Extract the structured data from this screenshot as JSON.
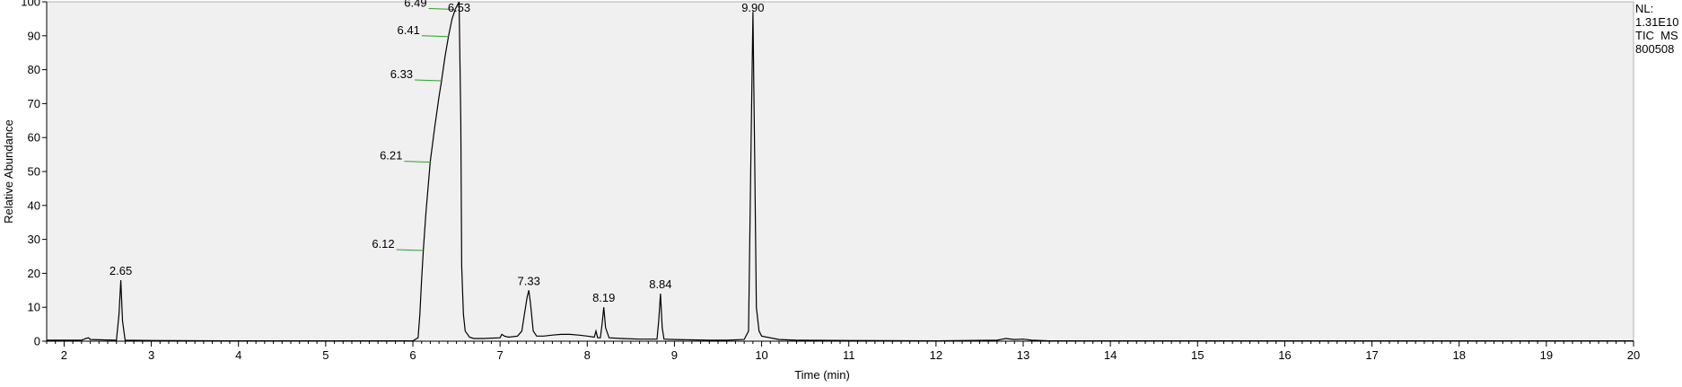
{
  "chart_data": {
    "type": "line",
    "xlabel": "Time (min)",
    "ylabel": "Relative Abundance",
    "xlim": [
      1.8,
      20
    ],
    "ylim": [
      0,
      100
    ],
    "x_ticks": [
      "2",
      "3",
      "4",
      "5",
      "6",
      "7",
      "8",
      "9",
      "10",
      "11",
      "12",
      "13",
      "14",
      "15",
      "16",
      "17",
      "18",
      "19",
      "20"
    ],
    "y_ticks": [
      "0",
      "10",
      "20",
      "30",
      "40",
      "50",
      "60",
      "70",
      "80",
      "90",
      "100"
    ],
    "info": [
      "NL:",
      "1.31E10",
      "TIC  MS",
      "800508"
    ],
    "peak_labels": [
      {
        "x": 2.65,
        "y": 18,
        "text": "2.65"
      },
      {
        "x": 6.12,
        "y": 27,
        "text": "6.12"
      },
      {
        "x": 6.21,
        "y": 53,
        "text": "6.21"
      },
      {
        "x": 6.33,
        "y": 77,
        "text": "6.33"
      },
      {
        "x": 6.41,
        "y": 90,
        "text": "6.41"
      },
      {
        "x": 6.49,
        "y": 98,
        "text": "6.49"
      },
      {
        "x": 6.53,
        "y": 100,
        "text": "6.53"
      },
      {
        "x": 7.33,
        "y": 15,
        "text": "7.33"
      },
      {
        "x": 8.19,
        "y": 10,
        "text": "8.19"
      },
      {
        "x": 8.84,
        "y": 14,
        "text": "8.84"
      },
      {
        "x": 9.9,
        "y": 97,
        "text": "9.90"
      }
    ],
    "series": [
      {
        "x": [
          1.8,
          2.2,
          2.25,
          2.28,
          2.3,
          2.6,
          2.63,
          2.65,
          2.67,
          2.7,
          3.0,
          4.0,
          5.0,
          5.8,
          6.0,
          6.06,
          6.08,
          6.1,
          6.12,
          6.15,
          6.2,
          6.25,
          6.3,
          6.33,
          6.37,
          6.41,
          6.45,
          6.49,
          6.53,
          6.55,
          6.56,
          6.58,
          6.6,
          6.65,
          6.7,
          6.8,
          7.0,
          7.02,
          7.05,
          7.1,
          7.2,
          7.25,
          7.28,
          7.31,
          7.33,
          7.35,
          7.38,
          7.42,
          7.5,
          7.6,
          7.7,
          7.8,
          7.9,
          8.0,
          8.08,
          8.1,
          8.12,
          8.15,
          8.17,
          8.19,
          8.21,
          8.25,
          8.4,
          8.6,
          8.8,
          8.82,
          8.84,
          8.86,
          8.88,
          9.0,
          9.2,
          9.4,
          9.6,
          9.8,
          9.85,
          9.88,
          9.9,
          9.92,
          9.94,
          9.97,
          10.0,
          10.2,
          10.4,
          11.0,
          12.0,
          12.7,
          12.8,
          12.9,
          13.0,
          13.1,
          13.3,
          14.0,
          16.0,
          18.0,
          20.0
        ],
        "y": [
          0.3,
          0.3,
          0.8,
          1.0,
          0.5,
          0.3,
          8,
          18,
          6,
          0.3,
          0.2,
          0.1,
          0.1,
          0.1,
          0.1,
          1,
          8,
          18,
          27,
          38,
          53,
          63,
          72,
          77,
          84,
          90,
          95,
          98,
          100,
          65,
          22,
          8,
          3,
          1.2,
          0.8,
          0.8,
          1.0,
          2.0,
          1.5,
          1.2,
          1.5,
          3,
          8,
          13,
          15,
          11,
          3,
          1.5,
          1.5,
          1.8,
          2.0,
          2.0,
          1.8,
          1.5,
          1.2,
          3,
          1,
          1,
          5,
          10,
          4,
          1,
          0.8,
          0.6,
          0.6,
          6,
          14,
          4,
          0.6,
          0.5,
          0.4,
          0.3,
          0.3,
          0.5,
          3,
          60,
          97,
          55,
          10,
          3,
          1.5,
          0.5,
          0.3,
          0.2,
          0.1,
          0.3,
          0.8,
          0.5,
          0.6,
          0.3,
          0.1,
          0.1,
          0.1,
          0.1,
          0.1
        ]
      }
    ]
  }
}
